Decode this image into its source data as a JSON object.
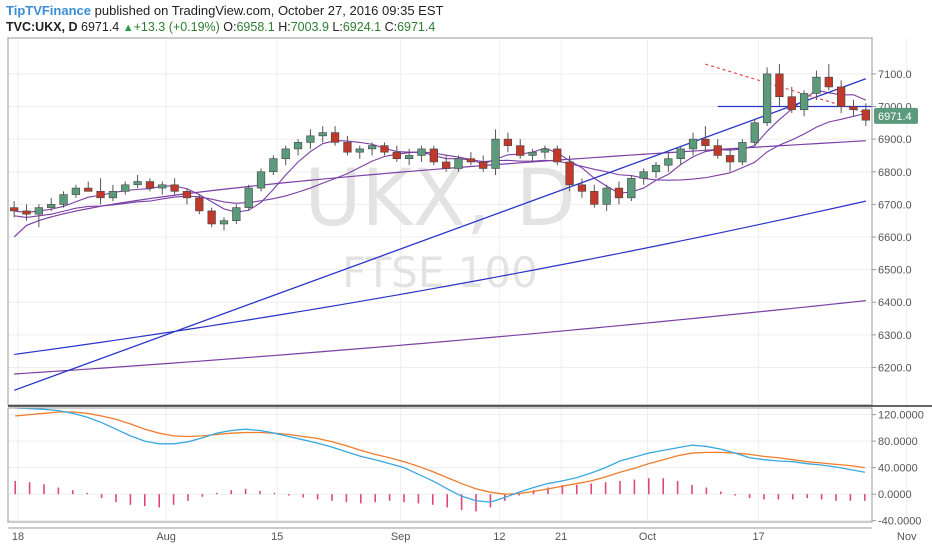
{
  "header": {
    "brand": "TipTVFinance",
    "published_text": "published on TradingView.com, October 27, 2016 09:35 EST",
    "symbol": "TVC:UKX, D",
    "last_price": "6971.4",
    "change": "+13.3 (+0.19%)",
    "open_label": "O:",
    "open_value": "6958.1",
    "high_label": "H:",
    "high_value": "7003.9",
    "low_label": "L:",
    "low_value": "6924.1",
    "close_label": "C:",
    "close_value": "6971.4"
  },
  "watermark": {
    "symbol": "UKX, D",
    "name": "FTSE 100"
  },
  "price_badge": "6971.4",
  "colors": {
    "up_candle": "#5b9b7b",
    "down_candle": "#c0392b",
    "ma_fast": "#7b3fa6",
    "trendline": "#2a34c9",
    "resistance": "#e04040",
    "macd_line": "#3aa8e0",
    "signal_line": "#f07d2a",
    "histogram": "#e0487a",
    "badge": "#5b9b7b"
  },
  "chart_data": [
    {
      "type": "candlestick",
      "title": "",
      "symbol": "TVC:UKX, D",
      "x_tick_labels": [
        "18",
        "Aug",
        "15",
        "Sep",
        "12",
        "21",
        "Oct",
        "17",
        "Nov"
      ],
      "y_tick_labels": [
        "6200.0",
        "6300.0",
        "6400.0",
        "6500.0",
        "6600.0",
        "6700.0",
        "6800.0",
        "6900.0",
        "7000.0",
        "7100.0"
      ],
      "ylim": [
        6085,
        7210
      ],
      "n_bars": 70,
      "ohlc": [
        [
          6690,
          6710,
          6660,
          6680
        ],
        [
          6680,
          6700,
          6650,
          6670
        ],
        [
          6670,
          6700,
          6630,
          6690
        ],
        [
          6690,
          6720,
          6680,
          6700
        ],
        [
          6700,
          6740,
          6690,
          6730
        ],
        [
          6730,
          6760,
          6720,
          6750
        ],
        [
          6750,
          6770,
          6740,
          6740
        ],
        [
          6740,
          6780,
          6700,
          6720
        ],
        [
          6720,
          6760,
          6710,
          6740
        ],
        [
          6740,
          6770,
          6730,
          6760
        ],
        [
          6760,
          6790,
          6750,
          6770
        ],
        [
          6770,
          6780,
          6740,
          6750
        ],
        [
          6750,
          6770,
          6730,
          6760
        ],
        [
          6760,
          6780,
          6730,
          6740
        ],
        [
          6740,
          6750,
          6700,
          6720
        ],
        [
          6720,
          6730,
          6670,
          6680
        ],
        [
          6680,
          6690,
          6630,
          6640
        ],
        [
          6640,
          6660,
          6620,
          6650
        ],
        [
          6650,
          6700,
          6640,
          6690
        ],
        [
          6690,
          6760,
          6680,
          6750
        ],
        [
          6750,
          6810,
          6740,
          6800
        ],
        [
          6800,
          6850,
          6790,
          6840
        ],
        [
          6840,
          6880,
          6820,
          6870
        ],
        [
          6870,
          6900,
          6850,
          6890
        ],
        [
          6890,
          6930,
          6870,
          6910
        ],
        [
          6910,
          6940,
          6890,
          6920
        ],
        [
          6920,
          6940,
          6880,
          6890
        ],
        [
          6890,
          6910,
          6850,
          6860
        ],
        [
          6860,
          6880,
          6840,
          6870
        ],
        [
          6870,
          6890,
          6850,
          6880
        ],
        [
          6880,
          6890,
          6850,
          6860
        ],
        [
          6860,
          6880,
          6830,
          6840
        ],
        [
          6840,
          6870,
          6820,
          6850
        ],
        [
          6850,
          6880,
          6830,
          6870
        ],
        [
          6870,
          6880,
          6820,
          6830
        ],
        [
          6830,
          6850,
          6800,
          6810
        ],
        [
          6810,
          6850,
          6800,
          6840
        ],
        [
          6840,
          6860,
          6820,
          6830
        ],
        [
          6830,
          6850,
          6800,
          6810
        ],
        [
          6810,
          6930,
          6790,
          6900
        ],
        [
          6900,
          6920,
          6860,
          6880
        ],
        [
          6880,
          6900,
          6840,
          6850
        ],
        [
          6850,
          6870,
          6830,
          6860
        ],
        [
          6860,
          6880,
          6840,
          6870
        ],
        [
          6870,
          6880,
          6820,
          6830
        ],
        [
          6830,
          6850,
          6740,
          6760
        ],
        [
          6760,
          6780,
          6720,
          6740
        ],
        [
          6740,
          6760,
          6690,
          6700
        ],
        [
          6700,
          6760,
          6680,
          6750
        ],
        [
          6750,
          6770,
          6700,
          6720
        ],
        [
          6720,
          6790,
          6710,
          6780
        ],
        [
          6780,
          6810,
          6760,
          6800
        ],
        [
          6800,
          6830,
          6780,
          6820
        ],
        [
          6820,
          6860,
          6800,
          6840
        ],
        [
          6840,
          6880,
          6820,
          6870
        ],
        [
          6870,
          6920,
          6850,
          6900
        ],
        [
          6900,
          6940,
          6860,
          6880
        ],
        [
          6880,
          6900,
          6840,
          6850
        ],
        [
          6850,
          6870,
          6800,
          6830
        ],
        [
          6830,
          6900,
          6820,
          6890
        ],
        [
          6890,
          6960,
          6880,
          6950
        ],
        [
          6950,
          7120,
          6940,
          7100
        ],
        [
          7100,
          7130,
          7000,
          7030
        ],
        [
          7030,
          7060,
          6980,
          6990
        ],
        [
          6990,
          7050,
          6970,
          7040
        ],
        [
          7040,
          7110,
          7020,
          7090
        ],
        [
          7090,
          7130,
          7050,
          7060
        ],
        [
          7060,
          7080,
          6980,
          7000
        ],
        [
          7000,
          7020,
          6970,
          6990
        ],
        [
          6990,
          7010,
          6940,
          6958.1
        ]
      ],
      "moving_averages": [
        {
          "values_at": "start_end",
          "start": 6600,
          "end": 6895
        },
        {
          "values_at": "start_end",
          "start": 6240,
          "end": 6710
        },
        {
          "values_at": "start_end",
          "start": 6180,
          "end": 6405
        }
      ],
      "annotations": {
        "horizontal_resistance": 7000,
        "trendline_start": [
          0,
          6130
        ],
        "trendline_end": [
          69,
          7085
        ],
        "descending_resistance_start": [
          56,
          7130
        ],
        "descending_resistance_end": [
          69,
          6975
        ]
      }
    },
    {
      "type": "macd",
      "y_tick_labels": [
        "-40.0000",
        "0.0000",
        "40.0000",
        "80.0000",
        "120.0000"
      ],
      "ylim": [
        -42,
        130
      ],
      "macd": [
        130,
        129,
        128,
        126,
        122,
        116,
        108,
        98,
        88,
        80,
        76,
        76,
        79,
        85,
        92,
        96,
        98,
        96,
        92,
        87,
        82,
        77,
        71,
        64,
        57,
        52,
        46,
        40,
        30,
        20,
        8,
        -3,
        -10,
        -12,
        -5,
        3,
        10,
        16,
        20,
        25,
        32,
        40,
        50,
        56,
        62,
        66,
        70,
        74,
        72,
        68,
        62,
        55,
        52,
        50,
        49,
        46,
        44,
        41,
        37,
        33
      ],
      "signal": [
        118,
        120,
        122,
        124,
        124,
        122,
        118,
        113,
        106,
        98,
        92,
        88,
        87,
        88,
        90,
        92,
        93,
        93,
        92,
        90,
        87,
        84,
        79,
        73,
        66,
        60,
        55,
        49,
        42,
        34,
        25,
        16,
        8,
        3,
        0,
        1,
        4,
        8,
        12,
        16,
        20,
        26,
        33,
        39,
        46,
        52,
        58,
        62,
        63,
        63,
        62,
        60,
        57,
        55,
        52,
        49,
        47,
        45,
        43,
        40
      ],
      "histogram": [
        20,
        18,
        15,
        10,
        6,
        2,
        -6,
        -12,
        -16,
        -18,
        -20,
        -16,
        -10,
        -4,
        2,
        6,
        8,
        5,
        2,
        -2,
        -5,
        -8,
        -10,
        -12,
        -14,
        -12,
        -10,
        -12,
        -14,
        -16,
        -20,
        -24,
        -26,
        -20,
        -10,
        -2,
        6,
        10,
        14,
        14,
        16,
        18,
        20,
        22,
        24,
        24,
        20,
        14,
        10,
        4,
        -2,
        -6,
        -8,
        -8,
        -8,
        -6,
        -8,
        -10,
        -10,
        -10
      ]
    }
  ]
}
